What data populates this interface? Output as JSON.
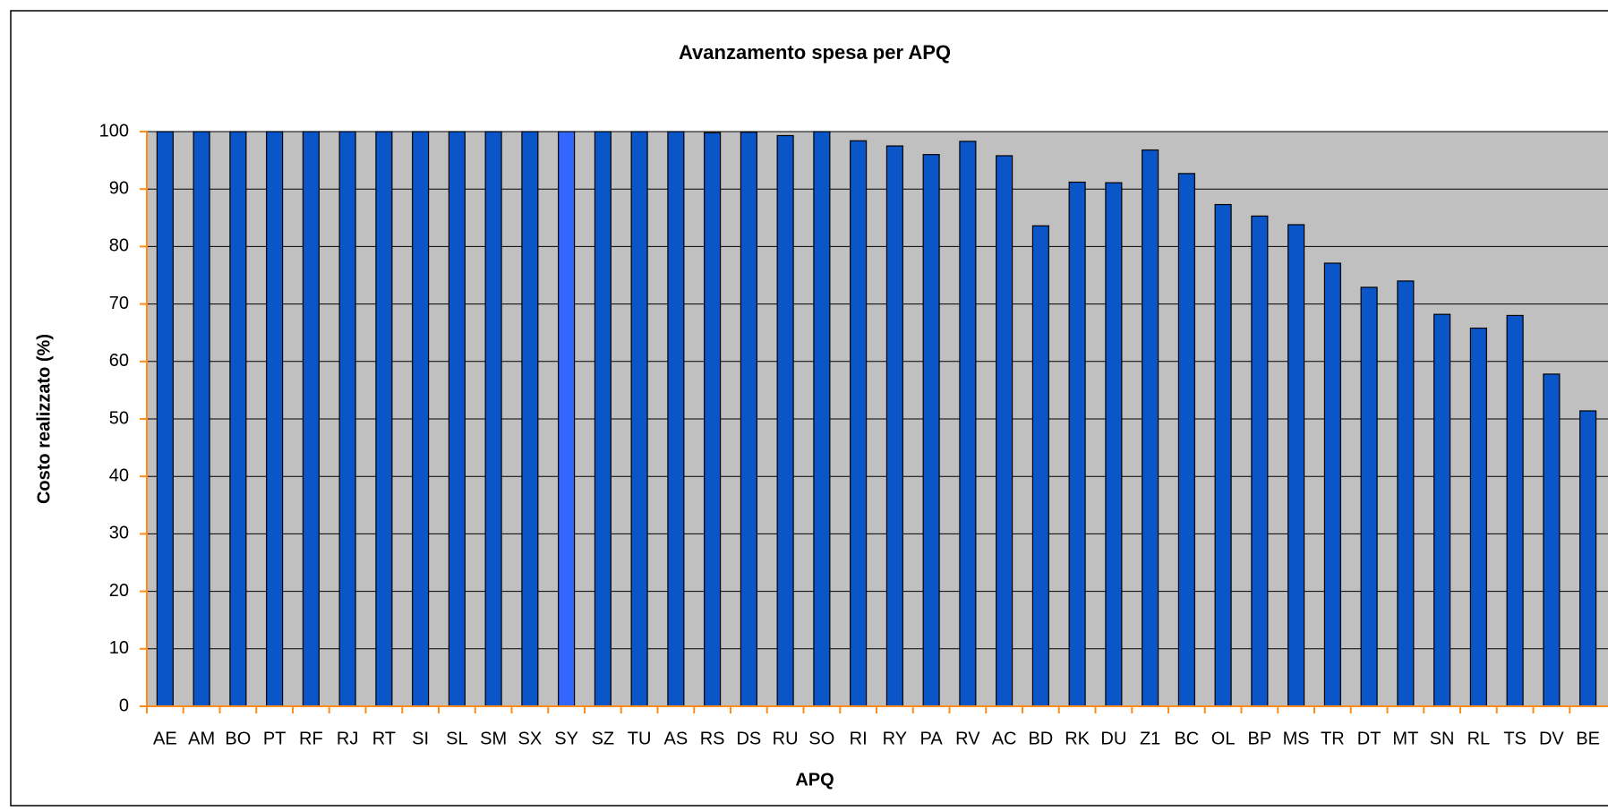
{
  "chart_data": {
    "type": "bar",
    "title": "Avanzamento spesa per APQ",
    "x_label": "APQ",
    "y_label": "Costo realizzato (%)",
    "categories": [
      "AE",
      "AM",
      "BO",
      "PT",
      "RF",
      "RJ",
      "RT",
      "SI",
      "SL",
      "SM",
      "SX",
      "SY",
      "SZ",
      "TU",
      "AS",
      "RS",
      "DS",
      "RU",
      "SO",
      "RI",
      "RY",
      "PA",
      "RV",
      "AC",
      "BD",
      "RK",
      "DU",
      "Z1",
      "BC",
      "OL",
      "BP",
      "MS",
      "TR",
      "DT",
      "MT",
      "SN",
      "RL",
      "TS",
      "DV",
      "BE"
    ],
    "values": [
      100,
      100,
      100,
      100,
      100,
      100,
      100,
      100,
      100,
      100,
      100,
      100,
      100,
      100,
      100,
      99.8,
      99.9,
      99.3,
      100,
      98.4,
      97.5,
      96,
      98.3,
      95.8,
      83.6,
      91.2,
      91.1,
      96.8,
      92.7,
      87.3,
      85.3,
      83.8,
      77.1,
      72.9,
      74,
      68.2,
      65.8,
      68,
      57.8,
      51.4
    ],
    "colors": [
      "#0a56c8",
      "#0a56c8",
      "#0a56c8",
      "#0a56c8",
      "#0a56c8",
      "#0a56c8",
      "#0a56c8",
      "#0a56c8",
      "#0a56c8",
      "#0a56c8",
      "#0a56c8",
      "#3366ff",
      "#0a56c8",
      "#0a56c8",
      "#0a56c8",
      "#0a56c8",
      "#0a56c8",
      "#0a56c8",
      "#0a56c8",
      "#0a56c8",
      "#0a56c8",
      "#0a56c8",
      "#0a56c8",
      "#0a56c8",
      "#0a56c8",
      "#0a56c8",
      "#0a56c8",
      "#0a56c8",
      "#0a56c8",
      "#0a56c8",
      "#0a56c8",
      "#0a56c8",
      "#0a56c8",
      "#0a56c8",
      "#0a56c8",
      "#0a56c8",
      "#0a56c8",
      "#0a56c8",
      "#0a56c8",
      "#0a56c8"
    ],
    "ylim": [
      0,
      100
    ],
    "yticks": [
      0,
      10,
      20,
      30,
      40,
      50,
      60,
      70,
      80,
      90,
      100
    ],
    "grid": true
  }
}
